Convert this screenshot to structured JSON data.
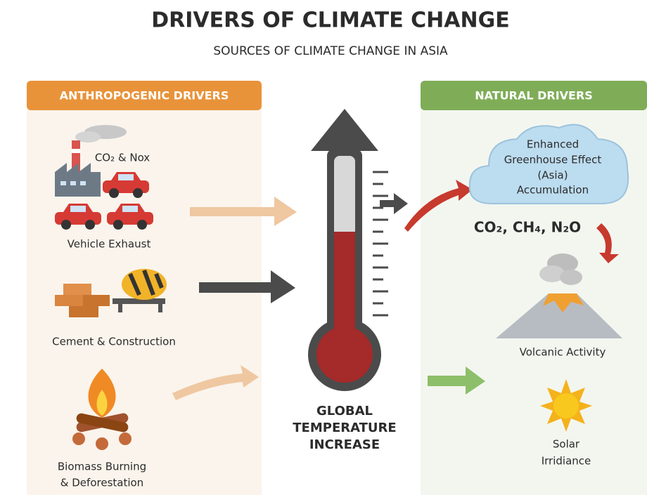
{
  "header": {
    "title": "DRIVERS OF CLIMATE CHANGE",
    "subtitle": "SOURCES OF CLIMATE CHANGE IN ASIA"
  },
  "anthropogenic": {
    "title": "ANTHROPOGENIC DRIVERS",
    "emissions": "CO₂ & Nox",
    "vehicles": "Vehicle Exhaust",
    "cement": "Cement & Construction",
    "biomass": [
      "Biomass Burning",
      "& Deforestation"
    ]
  },
  "center": {
    "label": [
      "GLOBAL",
      "TEMPERATURE",
      "INCREASE"
    ]
  },
  "natural": {
    "title": "NATURAL DRIVERS",
    "greenhouse": [
      "Enhanced",
      "Greenhouse Effect",
      "(Asia)",
      "Accumulation"
    ],
    "gases": "CO₂, CH₄, N₂O",
    "volcanic": "Volcanic Activity",
    "solar": [
      "Solar",
      "Irridiance"
    ]
  }
}
